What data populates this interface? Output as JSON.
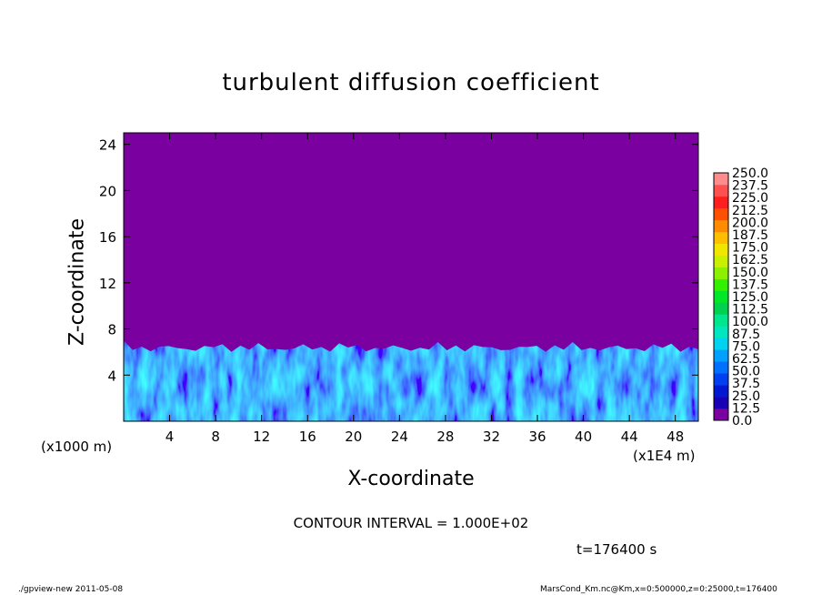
{
  "title": "turbulent diffusion coefficient",
  "chart_data": {
    "type": "heatmap",
    "title": "turbulent diffusion coefficient",
    "xlabel": "X-coordinate",
    "ylabel": "Z-coordinate",
    "x_unit_left": "(x1000 m)",
    "x_unit_right": "(x1E4 m)",
    "xlim": [
      0,
      50
    ],
    "ylim": [
      0,
      25
    ],
    "x_ticks": [
      "4",
      "8",
      "12",
      "16",
      "20",
      "24",
      "28",
      "32",
      "36",
      "40",
      "44",
      "48"
    ],
    "y_ticks": [
      "4",
      "8",
      "12",
      "16",
      "20",
      "24"
    ],
    "x_tick_values": [
      4,
      8,
      12,
      16,
      20,
      24,
      28,
      32,
      36,
      40,
      44,
      48
    ],
    "y_tick_values": [
      4,
      8,
      12,
      16,
      20,
      24
    ],
    "background_color": "#7b00a0",
    "turbulent_layer_top": 7,
    "colorbar": {
      "labels": [
        "0.0",
        "12.5",
        "25.0",
        "37.5",
        "50.0",
        "62.5",
        "75.0",
        "87.5",
        "100.0",
        "112.5",
        "125.0",
        "137.5",
        "150.0",
        "162.5",
        "175.0",
        "187.5",
        "200.0",
        "212.5",
        "225.0",
        "237.5",
        "250.0"
      ],
      "colors": [
        "#7b00a0",
        "#1a00b4",
        "#0018d2",
        "#0040f0",
        "#0070ff",
        "#00a0ff",
        "#00d2f0",
        "#00e6be",
        "#00e68c",
        "#00d250",
        "#00e628",
        "#32f000",
        "#8cf000",
        "#c8f000",
        "#f0e600",
        "#ffbe00",
        "#ff8c00",
        "#ff5000",
        "#ff1e1e",
        "#ff5050",
        "#ff8c8c"
      ]
    }
  },
  "contour_text": "CONTOUR INTERVAL = 1.000E+02",
  "time_text": "t=176400 s",
  "footer": {
    "left": "./gpview-new 2011-05-08",
    "right": "MarsCond_Km.nc@Km,x=0:500000,z=0:25000,t=176400"
  }
}
